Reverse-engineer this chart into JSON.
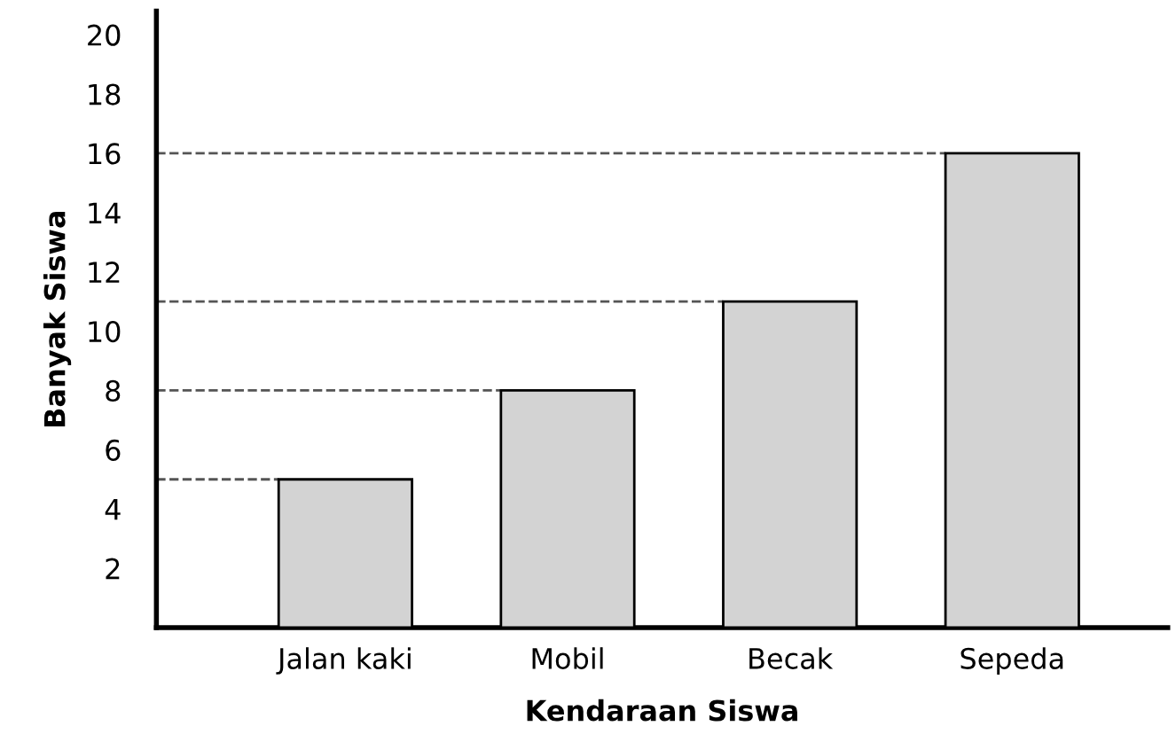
{
  "chart_data": {
    "type": "bar",
    "xlabel": "Kendaraan Siswa",
    "ylabel": "Banyak Siswa",
    "categories": [
      "Jalan kaki",
      "Mobil",
      "Becak",
      "Sepeda"
    ],
    "values": [
      5,
      8,
      11,
      16
    ],
    "color": "#d3d3d3",
    "ylim": [
      0,
      20.8
    ],
    "yticks": [
      2,
      4,
      6,
      8,
      10,
      12,
      14,
      16,
      18,
      20
    ],
    "grid": false,
    "legend": false,
    "ref_lines": [
      {
        "axis": "y",
        "value": 5,
        "line_style": "dashed",
        "color": "#555555"
      },
      {
        "axis": "y",
        "value": 8,
        "line_style": "dashed",
        "color": "#555555"
      },
      {
        "axis": "y",
        "value": 11,
        "line_style": "dashed",
        "color": "#555555"
      },
      {
        "axis": "y",
        "value": 16,
        "line_style": "dashed",
        "color": "#555555"
      }
    ]
  }
}
